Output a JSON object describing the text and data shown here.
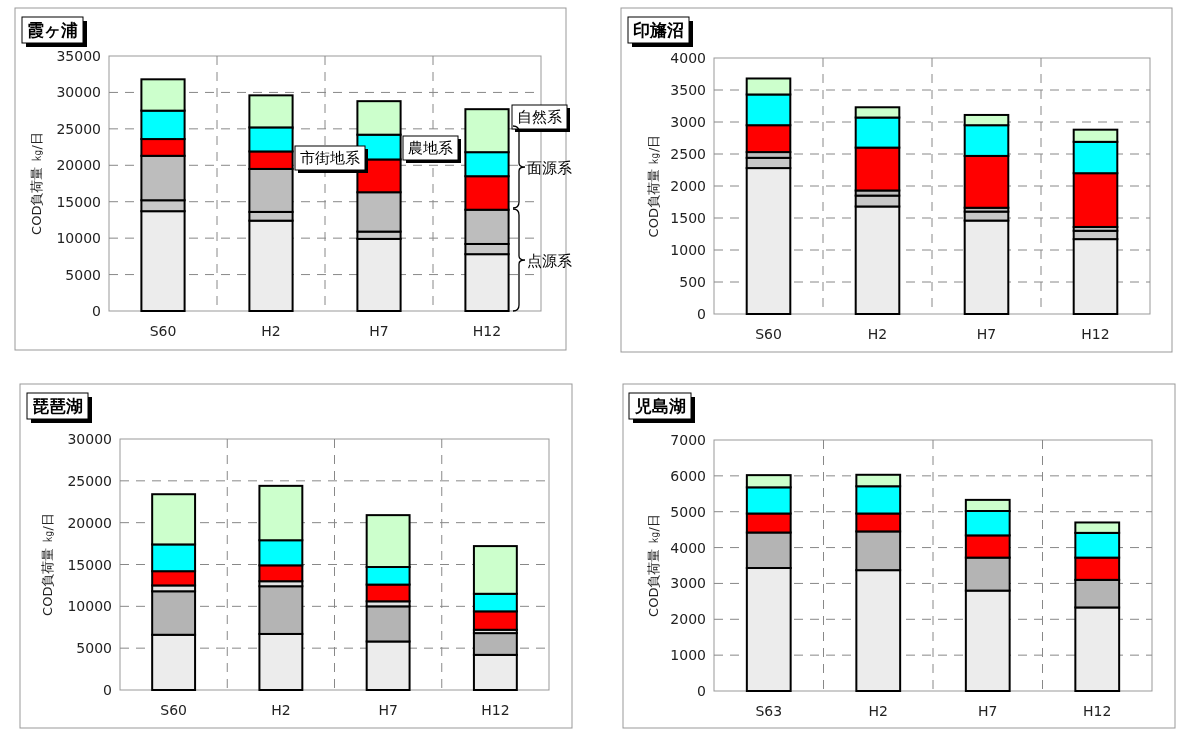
{
  "chart_data": [
    {
      "type": "bar",
      "title": "霞ヶ浦",
      "ylabel": "COD負荷量 ㎏/日",
      "categories": [
        "S60",
        "H2",
        "H7",
        "H12"
      ],
      "stacked": true,
      "ylim": [
        0,
        35000
      ],
      "yticks": [
        0,
        5000,
        10000,
        15000,
        20000,
        25000,
        30000,
        35000
      ],
      "grid": true,
      "series": [
        {
          "color": "#ececec",
          "values": [
            13700,
            12400,
            9900,
            7800
          ]
        },
        {
          "color": "#c8c8c8",
          "values": [
            1500,
            1200,
            1000,
            1400
          ]
        },
        {
          "color": "#bdbdbd",
          "values": [
            6100,
            5900,
            5400,
            4700
          ]
        },
        {
          "color": "#ff0000",
          "values": [
            2300,
            2400,
            4500,
            4600
          ]
        },
        {
          "color": "#00ffff",
          "values": [
            3900,
            3300,
            3400,
            3300
          ]
        },
        {
          "color": "#ccffcc",
          "values": [
            4300,
            4400,
            4600,
            5900
          ]
        }
      ],
      "annotations": [
        "自然系",
        "市街地系",
        "農地系",
        "面源系",
        "点源系"
      ]
    },
    {
      "type": "bar",
      "title": "印旛沼",
      "ylabel": "COD負荷量 ㎏/日",
      "categories": [
        "S60",
        "H2",
        "H7",
        "H12"
      ],
      "stacked": true,
      "ylim": [
        0,
        4000
      ],
      "yticks": [
        0,
        500,
        1000,
        1500,
        2000,
        2500,
        3000,
        3500,
        4000
      ],
      "grid": true,
      "series": [
        {
          "color": "#ececec",
          "values": [
            2280,
            1680,
            1460,
            1170
          ]
        },
        {
          "color": "#c8c8c8",
          "values": [
            160,
            170,
            140,
            130
          ]
        },
        {
          "color": "#bdbdbd",
          "values": [
            90,
            80,
            60,
            60
          ]
        },
        {
          "color": "#ff0000",
          "values": [
            420,
            670,
            810,
            840
          ]
        },
        {
          "color": "#00ffff",
          "values": [
            480,
            470,
            480,
            490
          ]
        },
        {
          "color": "#ccffcc",
          "values": [
            250,
            160,
            160,
            190
          ]
        }
      ]
    },
    {
      "type": "bar",
      "title": "琵琶湖",
      "ylabel": "COD負荷量 ㎏/日",
      "categories": [
        "S60",
        "H2",
        "H7",
        "H12"
      ],
      "stacked": true,
      "ylim": [
        0,
        30000
      ],
      "yticks": [
        0,
        5000,
        10000,
        15000,
        20000,
        25000,
        30000
      ],
      "grid": true,
      "series": [
        {
          "color": "#ececec",
          "values": [
            6600,
            6700,
            5800,
            4200
          ]
        },
        {
          "color": "#b4b4b4",
          "values": [
            5200,
            5700,
            4200,
            2600
          ]
        },
        {
          "color": "#e4e4e4",
          "values": [
            700,
            600,
            600,
            400
          ]
        },
        {
          "color": "#ff0000",
          "values": [
            1700,
            1900,
            2000,
            2200
          ]
        },
        {
          "color": "#00ffff",
          "values": [
            3200,
            3000,
            2100,
            2100
          ]
        },
        {
          "color": "#ccffcc",
          "values": [
            6000,
            6500,
            6200,
            5700
          ]
        }
      ]
    },
    {
      "type": "bar",
      "title": "児島湖",
      "ylabel": "COD負荷量 ㎏/日",
      "categories": [
        "S63",
        "H2",
        "H7",
        "H12"
      ],
      "stacked": true,
      "ylim": [
        0,
        7000
      ],
      "yticks": [
        0,
        1000,
        2000,
        3000,
        4000,
        5000,
        6000,
        7000
      ],
      "grid": true,
      "series": [
        {
          "color": "#ececec",
          "values": [
            3430,
            3370,
            2800,
            2330
          ]
        },
        {
          "color": "#b4b4b4",
          "values": [
            990,
            1080,
            920,
            770
          ]
        },
        {
          "color": "#ff0000",
          "values": [
            530,
            500,
            620,
            620
          ]
        },
        {
          "color": "#00ffff",
          "values": [
            730,
            760,
            680,
            690
          ]
        },
        {
          "color": "#ccffcc",
          "values": [
            340,
            320,
            310,
            290
          ]
        }
      ]
    }
  ]
}
